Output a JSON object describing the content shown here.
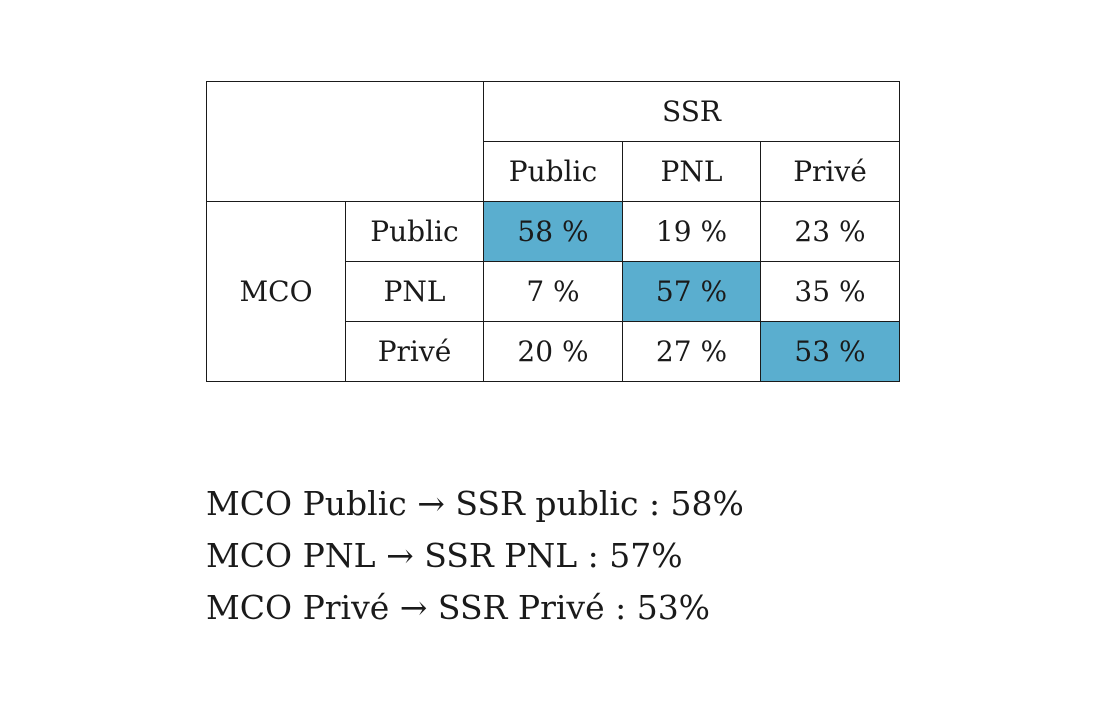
{
  "chart_data": {
    "type": "table",
    "column_group": "SSR",
    "row_group": "MCO",
    "columns": [
      "Public",
      "PNL",
      "Privé"
    ],
    "rows": [
      {
        "label": "Public",
        "cells": [
          "58 %",
          "19 %",
          "23 %"
        ],
        "values": [
          58,
          19,
          23
        ]
      },
      {
        "label": "PNL",
        "cells": [
          "7 %",
          "57 %",
          "35 %"
        ],
        "values": [
          7,
          57,
          35
        ]
      },
      {
        "label": "Privé",
        "cells": [
          "20 %",
          "27 %",
          "53 %"
        ],
        "values": [
          20,
          27,
          53
        ]
      }
    ],
    "highlight_color": "#5aaecf"
  },
  "summary": [
    "MCO Public → SSR public : 58%",
    "MCO PNL → SSR PNL : 57%",
    "MCO Privé → SSR Privé : 53%"
  ]
}
